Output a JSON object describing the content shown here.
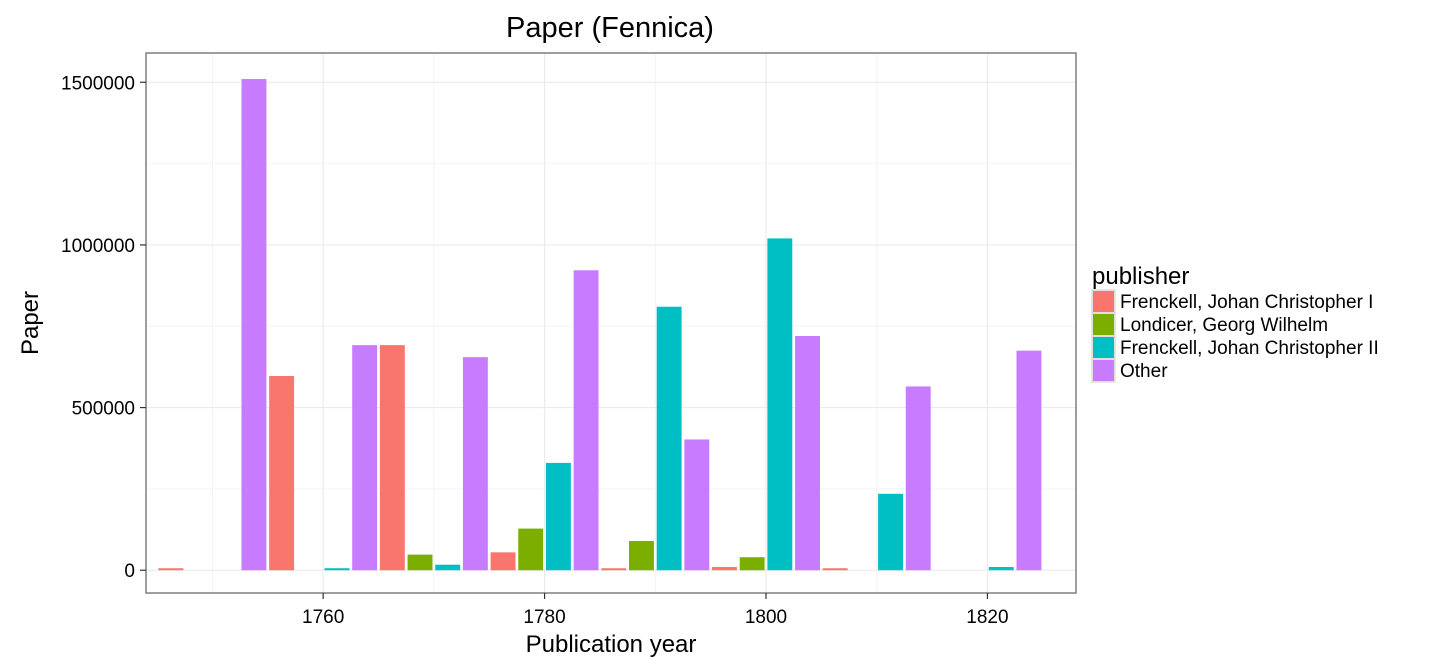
{
  "chart_data": {
    "type": "bar",
    "title": "Paper (Fennica)",
    "xlabel": "Publication year",
    "ylabel": "Paper",
    "legend_title": "publisher",
    "legend_position": "right",
    "grid": true,
    "x_ticks": [
      "1760",
      "1780",
      "1800",
      "1820"
    ],
    "y_ticks": [
      "0",
      "500000",
      "1000000",
      "1500000"
    ],
    "xlim": [
      1744,
      1828
    ],
    "ylim": [
      -70000,
      1590000
    ],
    "bin_width": 10,
    "categories": [
      1750,
      1760,
      1770,
      1780,
      1790,
      1800,
      1810,
      1820
    ],
    "series": [
      {
        "name": "Frenckell, Johan Christopher I",
        "color": "#F8766D",
        "values": [
          1000,
          597000,
          692000,
          55000,
          3000,
          10000,
          6000,
          null
        ]
      },
      {
        "name": "Londicer, Georg Wilhelm",
        "color": "#7CAE00",
        "values": [
          null,
          null,
          48000,
          128000,
          90000,
          40000,
          null,
          null
        ]
      },
      {
        "name": "Frenckell, Johan Christopher II",
        "color": "#00BFC4",
        "values": [
          null,
          3000,
          17000,
          330000,
          810000,
          1020000,
          235000,
          10000
        ]
      },
      {
        "name": "Other",
        "color": "#C77CFF",
        "values": [
          1510000,
          692000,
          655000,
          922000,
          402000,
          720000,
          565000,
          675000
        ]
      }
    ]
  }
}
